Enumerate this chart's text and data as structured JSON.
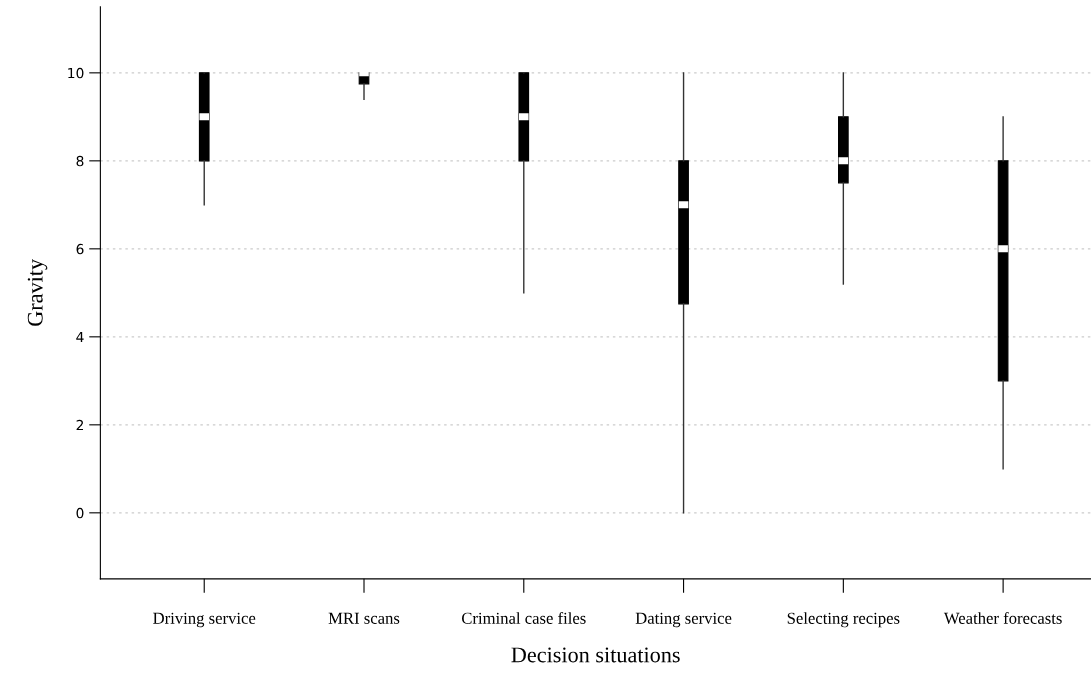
{
  "chart_data": {
    "type": "box",
    "xlabel": "Decision situations",
    "ylabel": "Gravity",
    "categories": [
      "Driving service",
      "MRI scans",
      "Criminal case files",
      "Dating service",
      "Selecting recipes",
      "Weather forecasts"
    ],
    "boxes": [
      {
        "low": 7,
        "q1": 8,
        "median": 9,
        "q3": 10,
        "high": 10
      },
      {
        "low": 9.4,
        "q1": 9.75,
        "median": 10,
        "q3": 10,
        "high": 10
      },
      {
        "low": 5,
        "q1": 8,
        "median": 9,
        "q3": 10,
        "high": 10
      },
      {
        "low": 0,
        "q1": 4.75,
        "median": 7,
        "q3": 8,
        "high": 10
      },
      {
        "low": 5.2,
        "q1": 7.5,
        "median": 8,
        "q3": 9,
        "high": 10
      },
      {
        "low": 1,
        "q1": 3,
        "median": 6,
        "q3": 8,
        "high": 9
      }
    ],
    "colors": [
      "#000000",
      "#000000",
      "#000000",
      "#000000",
      "#000000",
      "#000000"
    ],
    "ylim": [
      -1.5,
      11.5
    ],
    "yticks": [
      0,
      2,
      4,
      6,
      8,
      10
    ],
    "grid": "y"
  }
}
